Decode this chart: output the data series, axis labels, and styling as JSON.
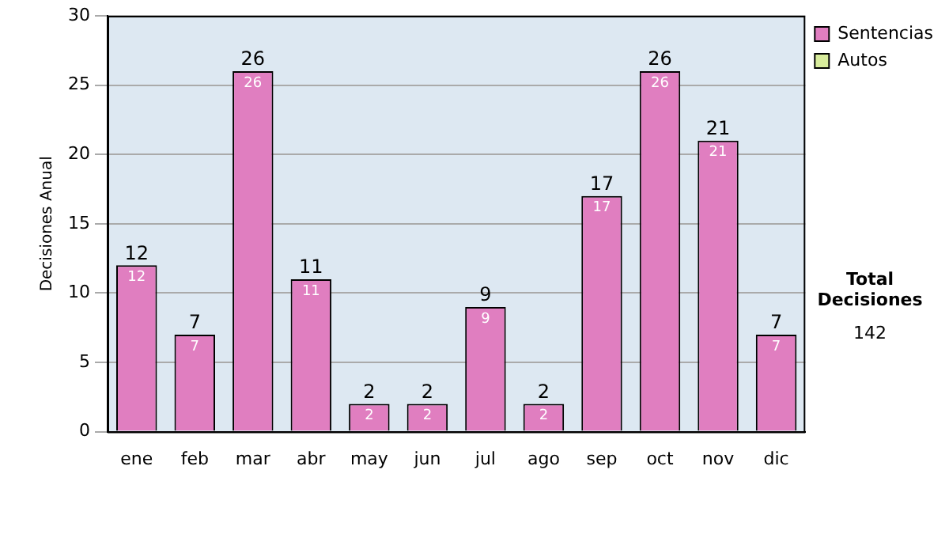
{
  "chart_data": {
    "type": "bar",
    "stacked": true,
    "ylabel": "Decisiones Anual",
    "categories": [
      "ene",
      "feb",
      "mar",
      "abr",
      "may",
      "jun",
      "jul",
      "ago",
      "sep",
      "oct",
      "nov",
      "dic"
    ],
    "series": [
      {
        "name": "Sentencias",
        "color": "#e07ec0",
        "values": [
          12,
          7,
          26,
          11,
          2,
          2,
          9,
          2,
          17,
          26,
          21,
          7
        ],
        "value_labels": [
          "12",
          "7",
          "26",
          "11",
          "2",
          "2",
          "9",
          "2",
          "17",
          "26",
          "21",
          "7"
        ]
      },
      {
        "name": "Autos",
        "color": "#d8ec9c",
        "values": [
          0,
          0,
          0,
          0,
          0,
          0,
          0,
          0,
          0,
          0,
          0,
          0
        ]
      }
    ],
    "totals": [
      "12",
      "7",
      "26",
      "11",
      "2",
      "2",
      "9",
      "2",
      "17",
      "26",
      "21",
      "7"
    ],
    "ylim": [
      0,
      30
    ],
    "yticks": [
      0,
      5,
      10,
      15,
      20,
      25,
      30
    ],
    "grid": "y",
    "legend": "right",
    "annotations": [
      "Total Decisiones",
      "142"
    ]
  }
}
